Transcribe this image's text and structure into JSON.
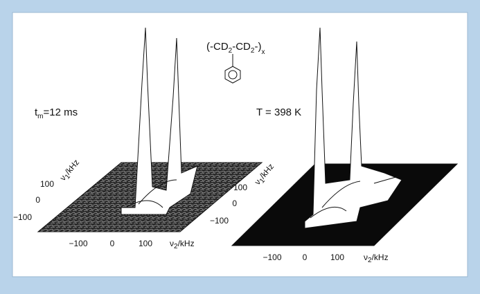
{
  "figure": {
    "formula": {
      "open": "(-CD",
      "sub1": "2",
      "mid": "-CD",
      "sub2": "2",
      "close": "-)",
      "subx": "x"
    },
    "panels": [
      {
        "annotation": {
          "main": "t",
          "sub": "m",
          "rest": "=12 ms"
        },
        "y_axis_label": {
          "main": "ν",
          "sub": "1",
          "rest": "/kHz"
        },
        "y_ticks": [
          "100",
          "0",
          "−100"
        ],
        "x_ticks": [
          "−100",
          "0",
          "100"
        ],
        "x_axis_label": {
          "main": "ν",
          "sub": "2",
          "rest": "/kHz"
        }
      },
      {
        "annotation": {
          "main": "T = 398 K"
        },
        "y_axis_label": {
          "main": "ν",
          "sub": "1",
          "rest": "/kHz"
        },
        "y_ticks": [
          "100",
          "0",
          "−100"
        ],
        "x_ticks": [
          "−100",
          "0",
          "100"
        ],
        "x_axis_label": {
          "main": "ν",
          "sub": "2",
          "rest": "/kHz"
        }
      }
    ]
  }
}
